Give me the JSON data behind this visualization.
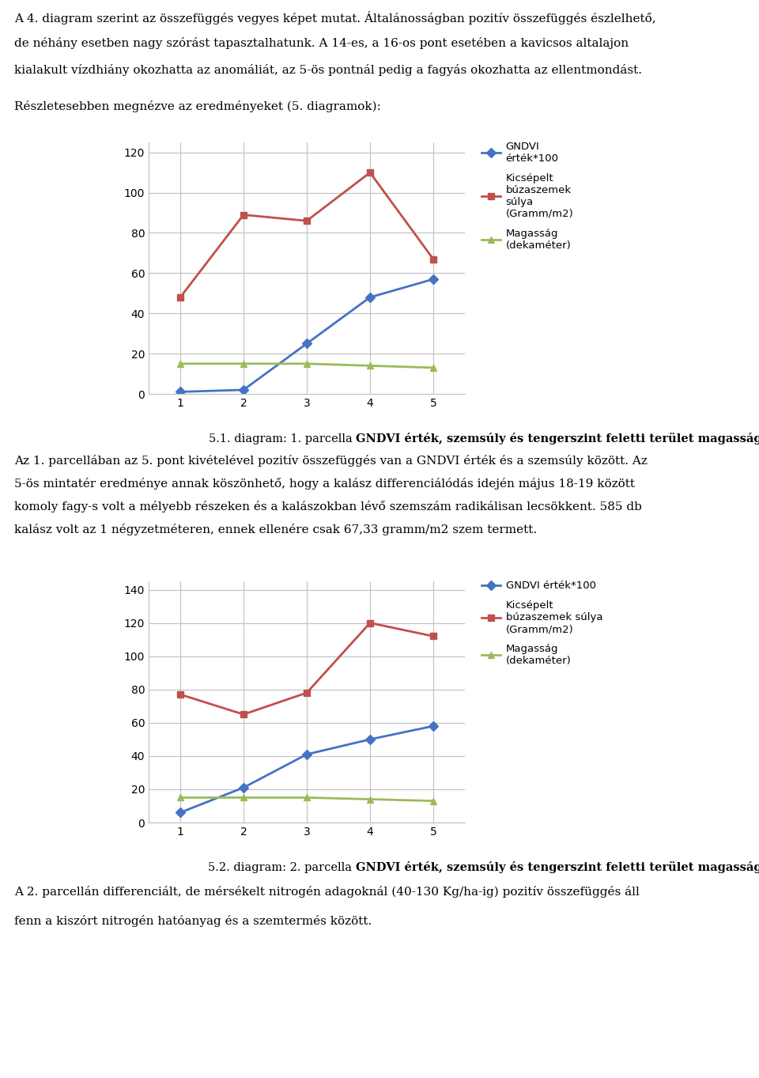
{
  "chart1": {
    "x": [
      1,
      2,
      3,
      4,
      5
    ],
    "gndvi": [
      1,
      2,
      25,
      48,
      57
    ],
    "weight": [
      48,
      89,
      86,
      110,
      67
    ],
    "height_data": [
      15,
      15,
      15,
      14,
      13
    ],
    "ylim": [
      0,
      125
    ],
    "yticks": [
      0,
      20,
      40,
      60,
      80,
      100,
      120
    ]
  },
  "chart2": {
    "x": [
      1,
      2,
      3,
      4,
      5
    ],
    "gndvi": [
      6,
      21,
      41,
      50,
      58
    ],
    "weight": [
      77,
      65,
      78,
      120,
      112
    ],
    "height_data": [
      15,
      15,
      15,
      14,
      13
    ],
    "ylim": [
      0,
      145
    ],
    "yticks": [
      0,
      20,
      40,
      60,
      80,
      100,
      120,
      140
    ]
  },
  "blue_color": "#4472C4",
  "red_color": "#C0504D",
  "green_color": "#9BBB59",
  "box_color": "#D0D0D0",
  "para1_line1": "A 4. diagram szerint az összefüggés vegyes képet mutat. Általánosságban pozitív összefüggés észlelhető,",
  "para1_line2": "de néhány esetben nagy szórást tapasztalhatunk. A 14-es, a 16-os pont esetében a kavicsos altalajon",
  "para1_line3": "kialakult vízdhiány okozhatta az anomáliát, az 5-ös pontnál pedig a fagyás okozhatta az ellentmondást.",
  "intro_line": "Részletesebben megnézve az eredményeket (5. diagramok):",
  "cap1_normal": "5.1. diagram: 1. parcella ",
  "cap1_bold": "GNDVI érték, szemsúly és tengerszint feletti terület magasság",
  "after1_line1": "Az 1. parcellában az 5. pont kivételével pozitív összefüggés van a GNDVI érték és a szemsúly között. Az",
  "after1_line2": "5-ös mintatér eredménye annak köszönhető, hogy a kalász differenciálódás idején május 18-19 között",
  "after1_line3": "komoly fagy-s volt a mélyebb részeken és a kalászokban lévő szemszám radikálisan lecsökkent. 585 db",
  "after1_line4": "kalász volt az 1 négyzetméteren, ennek ellenére csak 67,33 gramm/m2 szem termett.",
  "cap2_normal": "5.2. diagram: 2. parcella ",
  "cap2_bold": "GNDVI érték, szemsúly és tengerszint feletti terület magasság",
  "after2_line1": "A 2. parcellán differenciált, de mérsékelt nitrogén adagoknál (40-130 Kg/ha-ig) pozitív összefüggés áll",
  "after2_line2": "fenn a kiszórt nitrogén hatóanyag és a szemtermés között.",
  "leg1_label1": "GNDVI\nérték*100",
  "leg1_label2": "Kicsépelt\nbúzaszemek\nsúlya\n(Gramm/m2)",
  "leg1_label3": "Magasság\n(dekaméter)",
  "leg2_label1": "GNDVI érték*100",
  "leg2_label2": "Kicsépelt\nbúzaszemek súlya\n(Gramm/m2)",
  "leg2_label3": "Magasság\n(dekaméter)"
}
